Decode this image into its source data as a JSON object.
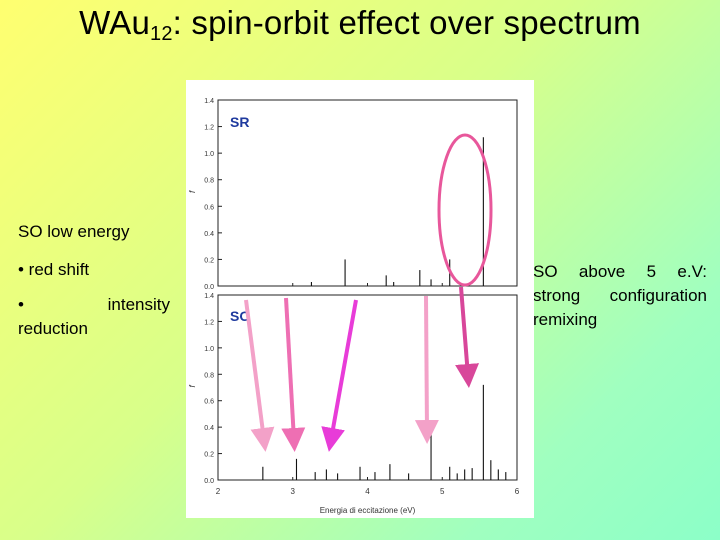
{
  "title": {
    "main": "WAu",
    "sub": "12",
    "rest": ": spin-orbit effect over spectrum"
  },
  "left_notes": {
    "heading": "SO low energy",
    "bullet1": "• red shift",
    "bullet2_a": "•",
    "bullet2_b": "intensity",
    "bullet2_c": "reduction"
  },
  "right_note": {
    "w1": "SO",
    "w2": "above",
    "w3": "5",
    "w4": "e.V:",
    "rest": "strong configuration remixing"
  },
  "chart_data": [
    {
      "type": "bar",
      "panel_label": "SR",
      "ylabel": "f",
      "ylim": [
        0,
        1.4
      ],
      "yticks": [
        "0.0",
        "0.2",
        "0.4",
        "0.6",
        "0.8",
        "1.0",
        "1.2",
        "1.4"
      ],
      "xlim": [
        2,
        6
      ],
      "x": [
        3.25,
        3.7,
        4.25,
        4.35,
        4.7,
        4.85,
        5.1,
        5.55
      ],
      "values": [
        0.03,
        0.2,
        0.08,
        0.03,
        0.12,
        0.05,
        0.2,
        1.12
      ]
    },
    {
      "type": "bar",
      "panel_label": "SO",
      "ylabel": "f",
      "ylim": [
        0,
        1.4
      ],
      "yticks": [
        "0.0",
        "0.2",
        "0.4",
        "0.6",
        "0.8",
        "1.0",
        "1.2",
        "1.4"
      ],
      "xlim": [
        2,
        6
      ],
      "xticks": [
        "2",
        "3",
        "4",
        "5",
        "6"
      ],
      "xlabel": "Energia di eccitazione (eV)",
      "x": [
        2.6,
        3.05,
        3.3,
        3.45,
        3.6,
        3.9,
        4.1,
        4.3,
        4.55,
        4.85,
        5.1,
        5.2,
        5.3,
        5.4,
        5.55,
        5.65,
        5.75,
        5.85
      ],
      "values": [
        0.1,
        0.16,
        0.06,
        0.08,
        0.05,
        0.1,
        0.06,
        0.12,
        0.05,
        0.36,
        0.1,
        0.05,
        0.08,
        0.09,
        0.72,
        0.15,
        0.08,
        0.06
      ]
    }
  ],
  "colors": {
    "ellipse": "#e8579b",
    "arrow_light": "#f3a1c8",
    "arrow_mid": "#ee6fb3",
    "arrow_magenta": "#e83cd8",
    "arrow_deep": "#d8479a",
    "panel_label": "#1f3a9e"
  }
}
